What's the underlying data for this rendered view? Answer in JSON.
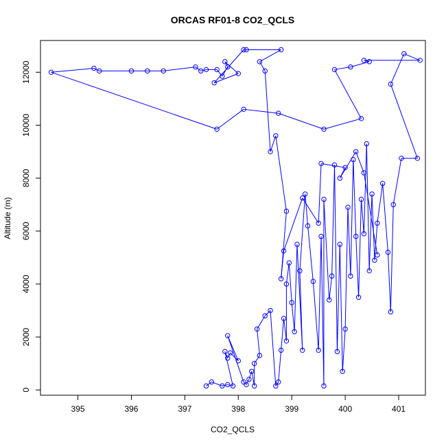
{
  "chart_data": {
    "type": "line",
    "title": "ORCAS RF01-8 CO2_QCLS",
    "xlabel": "CO2_QCLS",
    "ylabel": "Altitude (m)",
    "xlim": [
      394.3,
      401.5
    ],
    "ylim": [
      -200,
      13200
    ],
    "x_ticks": [
      395,
      396,
      397,
      398,
      399,
      400,
      401
    ],
    "y_ticks": [
      0,
      2000,
      4000,
      6000,
      8000,
      10000,
      12000
    ],
    "grid": false,
    "legend": "none",
    "series": [
      {
        "color": "#0000ff",
        "markers": "open-circle",
        "points": [
          [
            397.4,
            150
          ],
          [
            397.5,
            300
          ],
          [
            397.7,
            150
          ],
          [
            397.8,
            200
          ],
          [
            397.9,
            150
          ],
          [
            397.75,
            1450
          ],
          [
            397.8,
            1200
          ],
          [
            397.85,
            1400
          ],
          [
            398.0,
            1100
          ],
          [
            397.8,
            2050
          ],
          [
            398.1,
            300
          ],
          [
            398.15,
            200
          ],
          [
            398.2,
            400
          ],
          [
            398.25,
            700
          ],
          [
            398.3,
            150
          ],
          [
            398.3,
            1000
          ],
          [
            398.4,
            1300
          ],
          [
            398.35,
            2300
          ],
          [
            398.5,
            2800
          ],
          [
            398.6,
            3000
          ],
          [
            398.7,
            150
          ],
          [
            398.75,
            300
          ],
          [
            398.8,
            1500
          ],
          [
            398.85,
            2700
          ],
          [
            398.9,
            1850
          ],
          [
            398.9,
            4000
          ],
          [
            398.95,
            4800
          ],
          [
            399.0,
            3300
          ],
          [
            399.05,
            2200
          ],
          [
            399.1,
            5500
          ],
          [
            399.2,
            1500
          ],
          [
            399.15,
            4500
          ],
          [
            399.25,
            7400
          ],
          [
            399.3,
            6200
          ],
          [
            399.4,
            4100
          ],
          [
            399.5,
            1500
          ],
          [
            399.55,
            5800
          ],
          [
            399.6,
            150
          ],
          [
            399.6,
            7200
          ],
          [
            399.7,
            3400
          ],
          [
            399.75,
            4300
          ],
          [
            399.8,
            8500
          ],
          [
            399.85,
            1450
          ],
          [
            399.9,
            5500
          ],
          [
            399.95,
            700
          ],
          [
            400.0,
            2300
          ],
          [
            400.05,
            6900
          ],
          [
            400.1,
            4300
          ],
          [
            400.15,
            8700
          ],
          [
            400.2,
            5800
          ],
          [
            400.25,
            3500
          ],
          [
            400.3,
            7200
          ],
          [
            400.35,
            5900
          ],
          [
            400.4,
            9300
          ],
          [
            400.45,
            4500
          ],
          [
            400.5,
            7400
          ],
          [
            400.55,
            4900
          ],
          [
            400.6,
            6300
          ],
          [
            400.7,
            7800
          ],
          [
            400.8,
            5200
          ],
          [
            400.85,
            2950
          ],
          [
            400.9,
            7000
          ],
          [
            401.05,
            8750
          ],
          [
            401.35,
            8750
          ],
          [
            400.85,
            11550
          ],
          [
            401.1,
            12700
          ],
          [
            401.4,
            12450
          ],
          [
            400.35,
            12450
          ],
          [
            400.45,
            12400
          ],
          [
            400.1,
            12200
          ],
          [
            399.8,
            12100
          ],
          [
            400.3,
            10250
          ],
          [
            399.6,
            9850
          ],
          [
            398.75,
            10450
          ],
          [
            398.1,
            10600
          ],
          [
            397.6,
            9850
          ],
          [
            394.5,
            12000
          ],
          [
            395.3,
            12150
          ],
          [
            395.4,
            12050
          ],
          [
            396.0,
            12050
          ],
          [
            396.3,
            12050
          ],
          [
            396.6,
            12050
          ],
          [
            397.2,
            12200
          ],
          [
            397.3,
            12050
          ],
          [
            397.4,
            12100
          ],
          [
            397.6,
            12100
          ],
          [
            397.7,
            11850
          ],
          [
            397.8,
            12200
          ],
          [
            397.75,
            12400
          ],
          [
            398.0,
            11950
          ],
          [
            397.55,
            11600
          ],
          [
            398.1,
            12850
          ],
          [
            398.15,
            12850
          ],
          [
            398.8,
            12850
          ],
          [
            398.4,
            12400
          ],
          [
            398.5,
            12050
          ],
          [
            398.6,
            9000
          ],
          [
            398.7,
            9600
          ],
          [
            398.9,
            6750
          ],
          [
            398.8,
            4200
          ],
          [
            398.85,
            5250
          ],
          [
            399.2,
            7250
          ],
          [
            399.5,
            6300
          ],
          [
            399.55,
            8550
          ],
          [
            400.0,
            8400
          ],
          [
            399.9,
            8000
          ],
          [
            400.2,
            9000
          ],
          [
            400.35,
            8200
          ],
          [
            400.6,
            5100
          ]
        ]
      }
    ]
  }
}
